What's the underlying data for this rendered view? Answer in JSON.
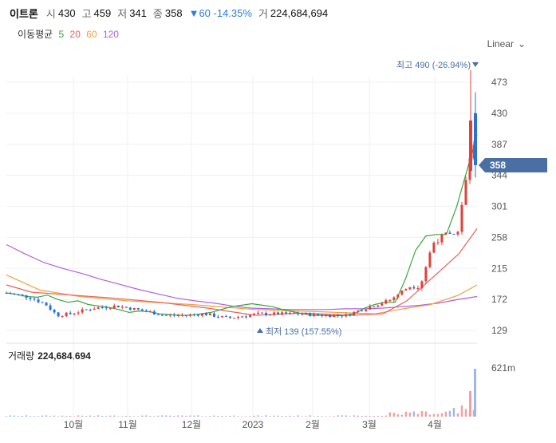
{
  "header": {
    "name": "이트론",
    "open_label": "시",
    "open": "430",
    "high_label": "고",
    "high": "459",
    "low_label": "저",
    "low": "341",
    "close_label": "종",
    "close": "358",
    "change": "▼60 -14.35%",
    "volume_label": "거",
    "volume": "224,684,694"
  },
  "ma": {
    "label": "이동평균",
    "p5": "5",
    "p20": "20",
    "p60": "60",
    "p120": "120"
  },
  "scale_label": "Linear",
  "volume_panel": {
    "label": "거래량",
    "value": "224,684,694",
    "axis_label": "621m"
  },
  "markers": {
    "high": "최고 490 (-26.94%)",
    "low": "최저 139 (157.55%)",
    "current_price": "358"
  },
  "colors": {
    "up": "#e0413c",
    "down": "#2c6fd6",
    "ma5": "#3aa63a",
    "ma20": "#e86060",
    "ma60": "#f0a040",
    "ma120": "#b060e0",
    "tag": "#4a6fa5"
  },
  "chart_data": {
    "type": "candlestick",
    "y_ticks": [
      473,
      430,
      387,
      344,
      301,
      258,
      215,
      172,
      129
    ],
    "ylim": [
      125,
      500
    ],
    "x_labels": [
      "10월",
      "11월",
      "12월",
      "2023",
      "2월",
      "3월",
      "4월"
    ],
    "series": [
      {
        "name": "5",
        "values": [
          181,
          179,
          176,
          175,
          178,
          172,
          168,
          170,
          165,
          163,
          161,
          158,
          154,
          156,
          155,
          152,
          151,
          150,
          150,
          152,
          154,
          158,
          162,
          164,
          166,
          164,
          162,
          158,
          155,
          152,
          150,
          150,
          149,
          150,
          152,
          160,
          165,
          168,
          168,
          200,
          240,
          260,
          262,
          262,
          300,
          350,
          400
        ]
      },
      {
        "name": "20",
        "values": [
          175,
          190,
          202,
          222,
          248,
          270
        ]
      },
      {
        "name": "60",
        "values": [
          152,
          158,
          165,
          172,
          180,
          192
        ]
      },
      {
        "name": "120",
        "values": [
          248,
          235,
          223,
          215,
          208,
          200,
          193,
          186,
          180,
          174,
          170,
          167,
          163,
          160,
          159,
          158,
          158,
          158,
          159,
          159,
          160,
          162,
          164,
          167,
          172,
          176
        ]
      }
    ],
    "volume_ylim": [
      0,
      621
    ]
  }
}
